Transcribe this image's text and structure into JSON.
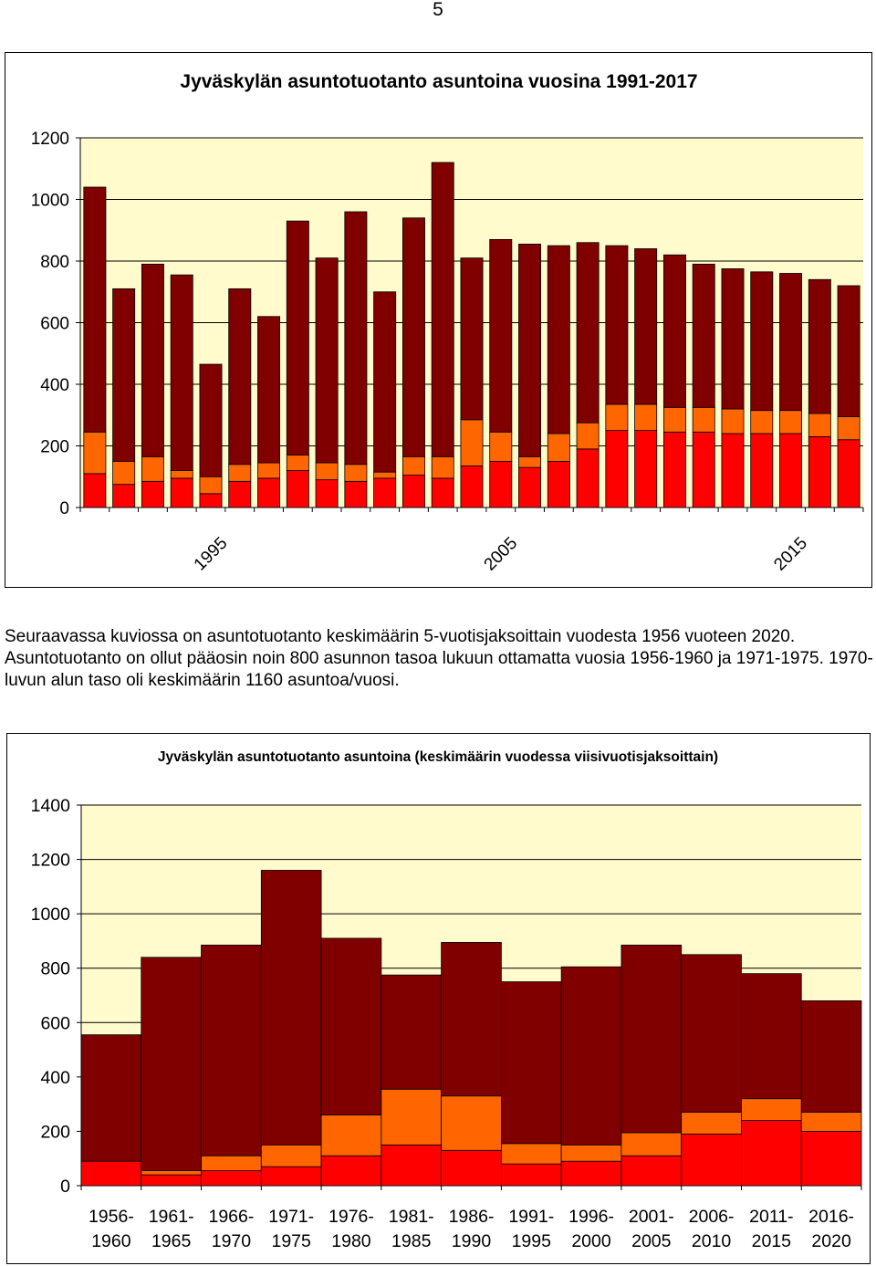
{
  "page": {
    "number": "5",
    "paragraph": "Seuraavassa kuviossa on asuntotuotanto keskimäärin 5-vuotisjaksoittain vuodesta 1956 vuoteen 2020. Asuntotuotanto on ollut pääosin noin 800 asunnon tasoa lukuun ottamatta vuosia 1956-1960 ja 1971-1975. 1970-luvun alun taso oli keskimäärin 1160 asuntoa/vuosi."
  },
  "colors": {
    "plot_background": "#fffbcc",
    "series_bottom": "#ff0000",
    "series_middle": "#ff6600",
    "series_top": "#800000",
    "grid": "#000000"
  },
  "chart_data": [
    {
      "type": "bar",
      "stacked": true,
      "title": "Jyväskylän asuntotuotanto asuntoina vuosina 1991-2017",
      "xlabel": "",
      "ylabel": "",
      "ylim": [
        0,
        1200
      ],
      "yticks": [
        0,
        200,
        400,
        600,
        800,
        1000,
        1200
      ],
      "grid": true,
      "legend": "none",
      "categories": [
        1991,
        1992,
        1993,
        1994,
        1995,
        1996,
        1997,
        1998,
        1999,
        2000,
        2001,
        2002,
        2003,
        2004,
        2005,
        2006,
        2007,
        2008,
        2009,
        2010,
        2011,
        2012,
        2013,
        2014,
        2015,
        2016,
        2017
      ],
      "tick_labels": [
        "1995",
        "2005",
        "2015"
      ],
      "tick_label_years": [
        1995,
        2005,
        2015
      ],
      "series": [
        {
          "values": [
            110,
            75,
            85,
            95,
            45,
            85,
            95,
            120,
            90,
            85,
            95,
            105,
            95,
            135,
            150,
            130,
            150,
            190,
            250,
            250,
            245,
            245,
            240,
            240,
            240,
            230,
            220
          ]
        },
        {
          "values": [
            135,
            75,
            80,
            25,
            55,
            55,
            50,
            50,
            55,
            55,
            20,
            60,
            70,
            150,
            95,
            35,
            90,
            85,
            85,
            85,
            80,
            80,
            80,
            75,
            75,
            75,
            75
          ]
        },
        {
          "values": [
            795,
            560,
            625,
            635,
            365,
            570,
            475,
            760,
            665,
            820,
            585,
            775,
            955,
            525,
            625,
            690,
            610,
            585,
            515,
            505,
            495,
            465,
            455,
            450,
            445,
            435,
            425
          ]
        }
      ]
    },
    {
      "type": "bar",
      "stacked": true,
      "title": "Jyväskylän asuntotuotanto asuntoina (keskimäärin vuodessa viisivuotisjaksoittain)",
      "xlabel": "",
      "ylabel": "",
      "ylim": [
        0,
        1400
      ],
      "yticks": [
        0,
        200,
        400,
        600,
        800,
        1000,
        1200,
        1400
      ],
      "grid": true,
      "legend": "none",
      "categories": [
        "1956-1960",
        "1961-1965",
        "1966-1970",
        "1971-1975",
        "1976-1980",
        "1981-1985",
        "1986-1990",
        "1991-1995",
        "1996-2000",
        "2001-2005",
        "2006-2010",
        "2011-2015",
        "2016-2020"
      ],
      "series": [
        {
          "values": [
            90,
            40,
            55,
            70,
            110,
            150,
            130,
            80,
            90,
            110,
            190,
            240,
            200
          ]
        },
        {
          "values": [
            0,
            15,
            55,
            80,
            150,
            205,
            200,
            75,
            60,
            85,
            80,
            80,
            70
          ]
        },
        {
          "values": [
            465,
            785,
            775,
            1010,
            650,
            420,
            565,
            595,
            655,
            690,
            580,
            460,
            410
          ]
        }
      ]
    }
  ]
}
